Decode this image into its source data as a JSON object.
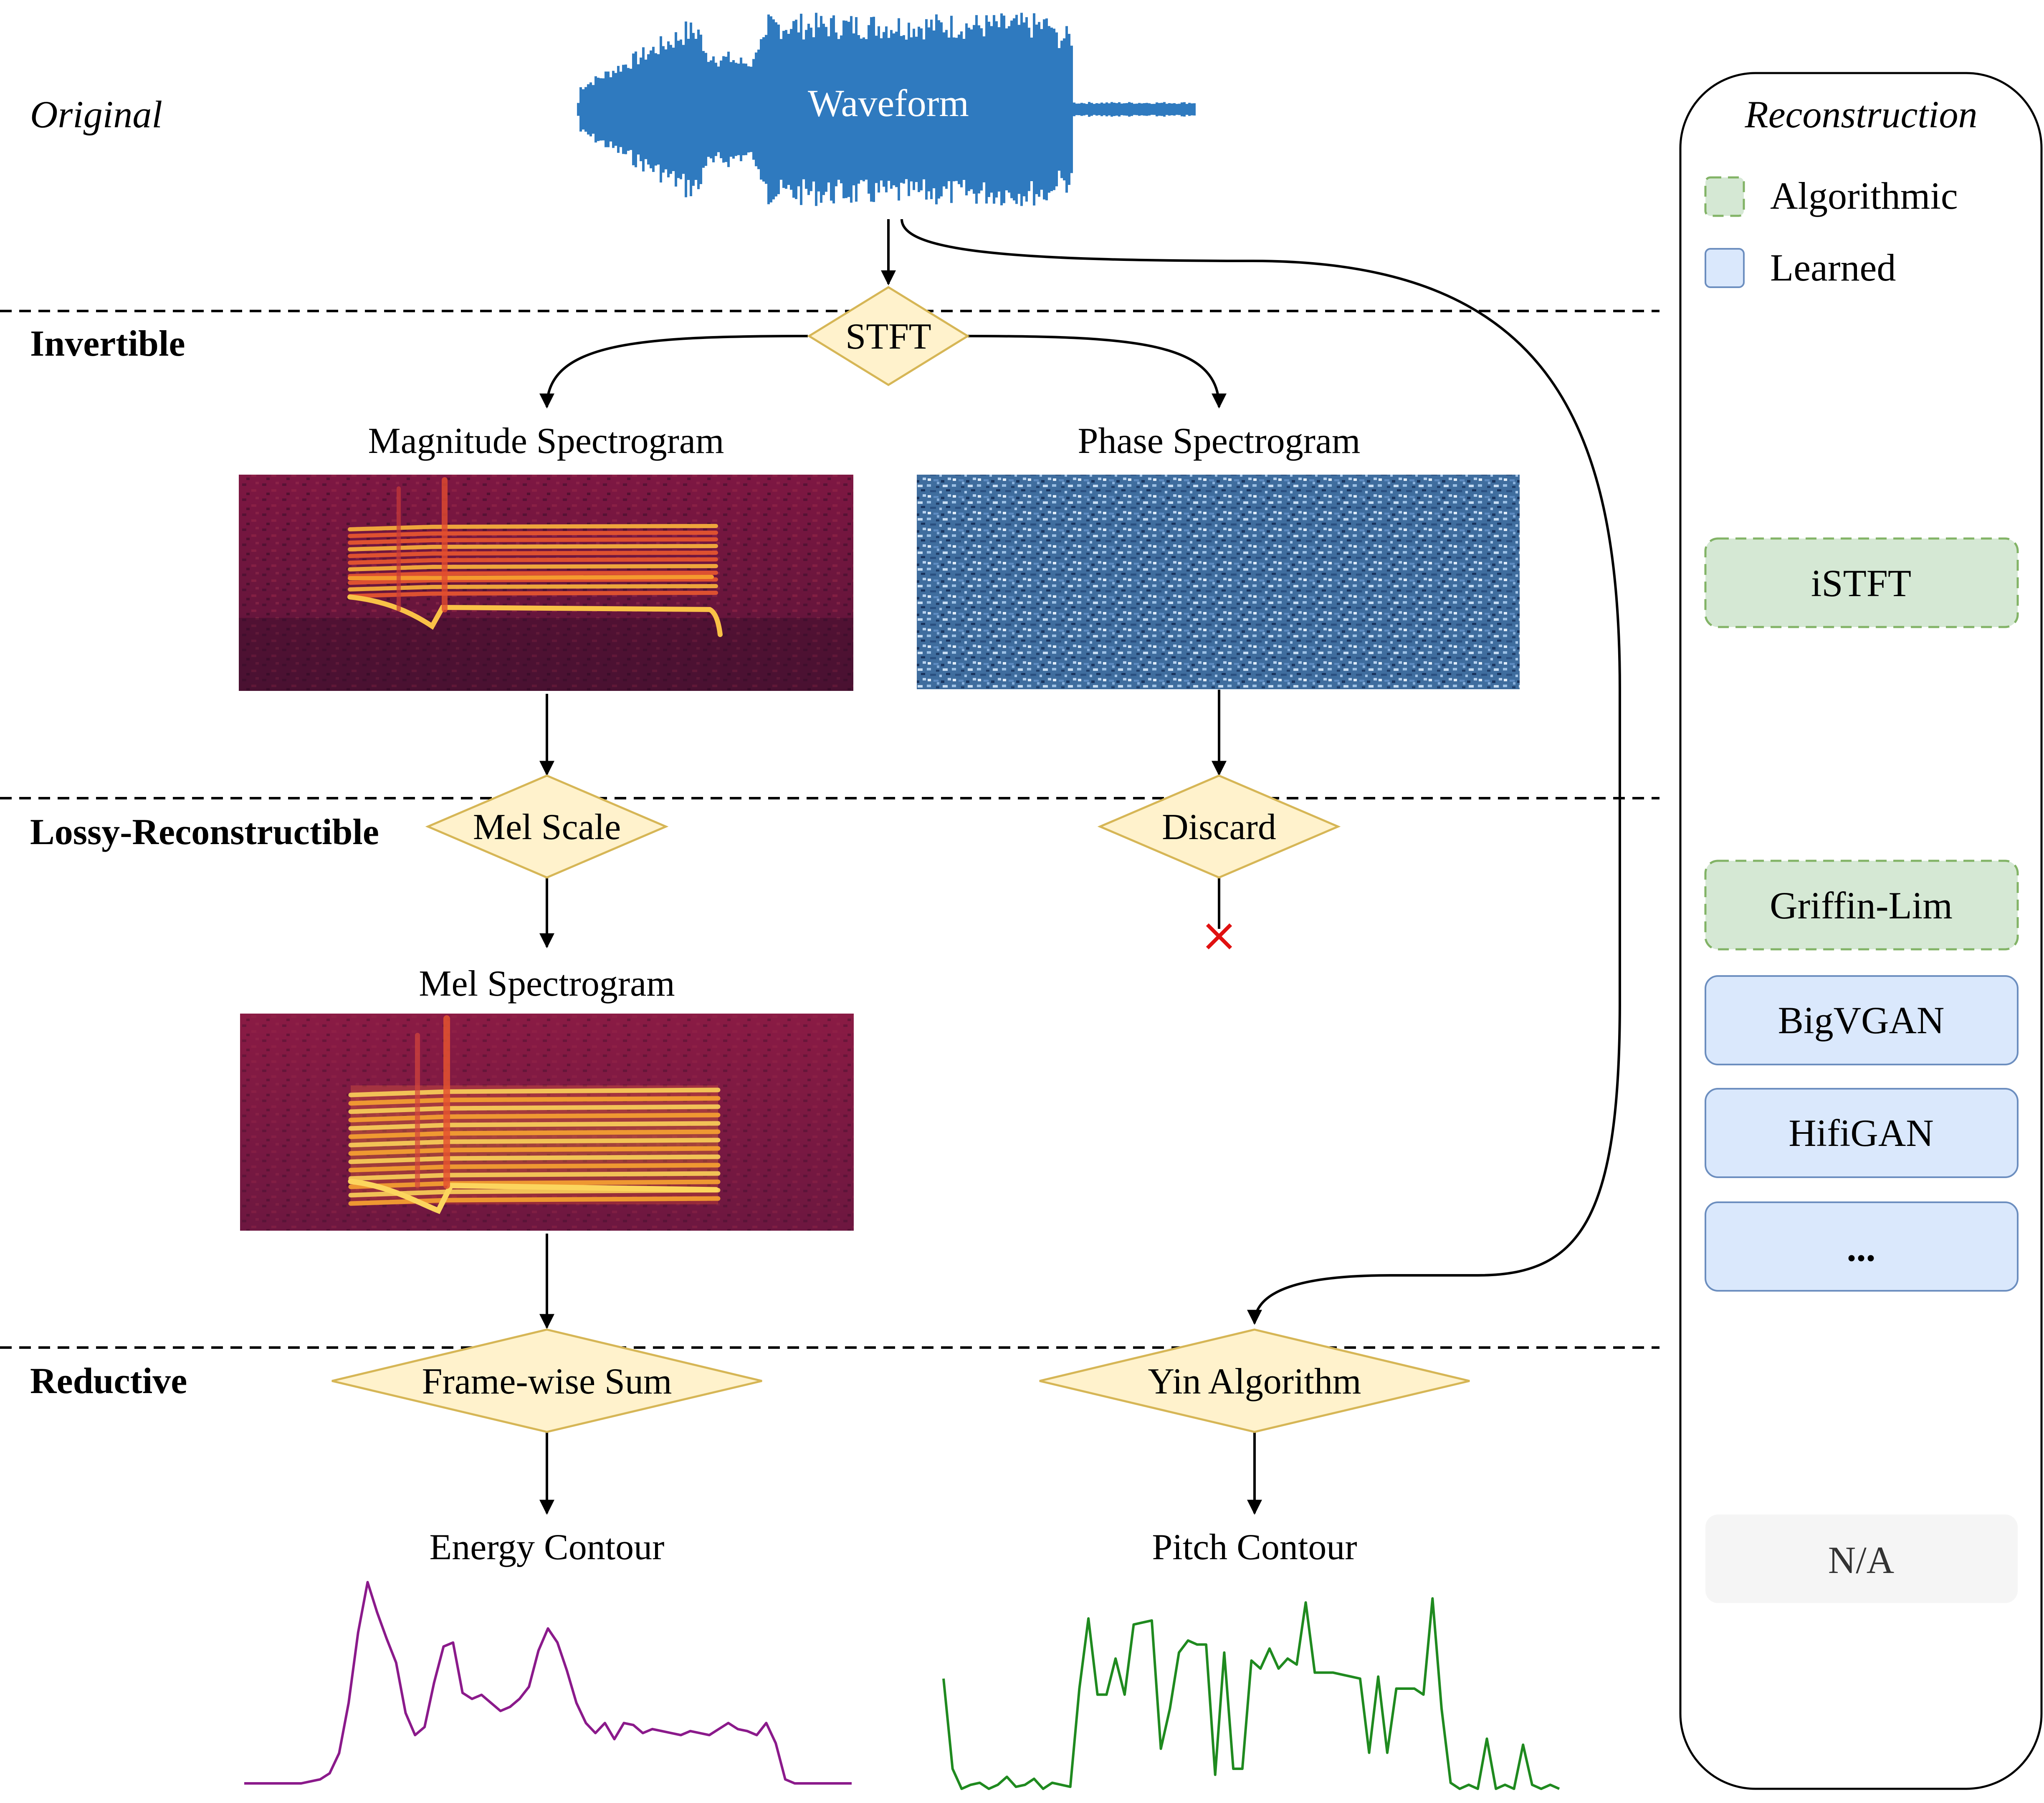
{
  "levels": {
    "original": "Original",
    "invertible": "Invertible",
    "lossy": "Lossy-Reconstructible",
    "reductive": "Reductive"
  },
  "nodes": {
    "waveform": "Waveform",
    "stft": "STFT",
    "magnitude_label": "Magnitude Spectrogram",
    "phase_label": "Phase Spectrogram",
    "mel_scale": "Mel Scale",
    "discard": "Discard",
    "mel_label": "Mel Spectrogram",
    "frame_sum": "Frame-wise Sum",
    "yin": "Yin Algorithm",
    "energy_label": "Energy Contour",
    "pitch_label": "Pitch Contour"
  },
  "reconstruction": {
    "title": "Reconstruction",
    "legend": [
      {
        "label": "Algorithmic",
        "kind": "algorithmic"
      },
      {
        "label": "Learned",
        "kind": "learned"
      }
    ],
    "invertible_methods": [
      {
        "label": "iSTFT",
        "kind": "algorithmic"
      }
    ],
    "lossy_methods": [
      {
        "label": "Griffin-Lim",
        "kind": "algorithmic"
      },
      {
        "label": "BigVGAN",
        "kind": "learned"
      },
      {
        "label": "HifiGAN",
        "kind": "learned"
      },
      {
        "label": "...",
        "kind": "learned"
      }
    ],
    "reductive_methods": [
      {
        "label": "N/A",
        "kind": "none"
      }
    ]
  },
  "colors": {
    "waveform": "#2f7abf",
    "diamond_fill": "#fff2cc",
    "diamond_stroke": "#d6b656",
    "algorithmic_fill": "#d5e8d4",
    "algorithmic_stroke": "#82b366",
    "learned_fill": "#dae8fc",
    "learned_stroke": "#6c8ebf",
    "na_fill": "#f5f5f5",
    "energy_line": "#8b1a8b",
    "pitch_line": "#1f8a1f",
    "discard_mark": "#e01010"
  },
  "energy_contour": [
    0.0,
    0.0,
    0.0,
    0.0,
    0.0,
    0.0,
    0.0,
    0.01,
    0.02,
    0.05,
    0.15,
    0.4,
    0.75,
    1.0,
    0.85,
    0.72,
    0.6,
    0.35,
    0.24,
    0.28,
    0.5,
    0.68,
    0.7,
    0.45,
    0.42,
    0.44,
    0.4,
    0.36,
    0.38,
    0.42,
    0.48,
    0.66,
    0.77,
    0.7,
    0.56,
    0.4,
    0.3,
    0.25,
    0.3,
    0.22,
    0.3,
    0.29,
    0.25,
    0.27,
    0.26,
    0.25,
    0.24,
    0.26,
    0.25,
    0.24,
    0.27,
    0.3,
    0.27,
    0.26,
    0.24,
    0.3,
    0.2,
    0.02,
    0.0,
    0.0,
    0.0,
    0.0,
    0.0,
    0.0,
    0.0
  ],
  "pitch_contour": [
    0.55,
    0.1,
    0.0,
    0.02,
    0.03,
    0.0,
    0.02,
    0.06,
    0.01,
    0.02,
    0.05,
    0.0,
    0.03,
    0.02,
    0.01,
    0.5,
    0.85,
    0.47,
    0.47,
    0.65,
    0.47,
    0.82,
    0.83,
    0.84,
    0.2,
    0.4,
    0.68,
    0.74,
    0.72,
    0.72,
    0.07,
    0.68,
    0.1,
    0.1,
    0.64,
    0.6,
    0.7,
    0.6,
    0.65,
    0.62,
    0.93,
    0.58,
    0.58,
    0.58,
    0.57,
    0.56,
    0.55,
    0.18,
    0.56,
    0.18,
    0.5,
    0.5,
    0.5,
    0.47,
    0.95,
    0.4,
    0.03,
    0.0,
    0.02,
    0.0,
    0.25,
    0.0,
    0.02,
    0.0,
    0.22,
    0.02,
    0.0,
    0.02,
    0.0
  ]
}
